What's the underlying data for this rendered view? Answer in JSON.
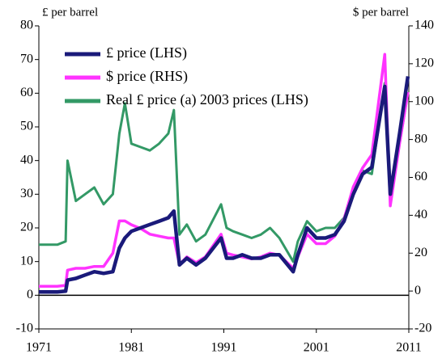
{
  "chart_data": {
    "type": "line",
    "y_label": "£ per barrel",
    "y2_label": "$ per barrel",
    "x": [
      1971,
      1972,
      1973,
      1973.9,
      1974.1,
      1975,
      1976,
      1977,
      1978,
      1979,
      1979.7,
      1980.3,
      1981,
      1982,
      1983,
      1984,
      1985,
      1985.6,
      1986.2,
      1987,
      1988,
      1989,
      1990.7,
      1991.3,
      1992,
      1993,
      1994,
      1995,
      1996,
      1997,
      1998.5,
      1999,
      2000,
      2001,
      2002,
      2003,
      2004,
      2005,
      2006,
      2007,
      2008.4,
      2009,
      2010,
      2010.9
    ],
    "series": [
      {
        "name": "Real £ price (a) 2003 prices (LHS)",
        "color": "#339966",
        "values": [
          15,
          15,
          15,
          16,
          40,
          28,
          30,
          32,
          27,
          30,
          48,
          57,
          45,
          44,
          43,
          45,
          48,
          55,
          18,
          21,
          16,
          18,
          27,
          20,
          19,
          18,
          17,
          18,
          20,
          17,
          10,
          16,
          22,
          19,
          20,
          20,
          23,
          31,
          37,
          36,
          63,
          28,
          45,
          60
        ]
      },
      {
        "name": "$ price (RHS)",
        "color": "#ff33ff",
        "axis": "y2",
        "values": [
          2.5,
          2.5,
          2.5,
          3,
          11,
          12,
          12,
          13,
          13,
          20,
          37,
          37,
          35,
          33,
          30,
          29,
          28,
          28,
          14,
          18,
          15,
          18,
          30,
          20,
          19,
          18,
          17,
          18,
          20,
          19,
          12,
          18,
          30,
          25,
          25,
          29,
          38,
          55,
          65,
          72,
          125,
          45,
          78,
          105
        ]
      },
      {
        "name": "£ price (LHS)",
        "color": "#1a1a7a",
        "values": [
          1,
          1,
          1,
          1.2,
          4.5,
          5,
          6,
          7,
          6.5,
          7,
          14,
          17,
          19,
          20,
          21,
          22,
          23,
          25,
          9,
          11,
          9,
          11,
          17,
          11,
          11,
          12,
          11,
          11,
          12,
          12,
          7,
          12,
          20,
          17,
          17,
          18,
          22,
          30,
          36,
          38,
          62,
          30,
          48,
          65
        ]
      }
    ],
    "legend_order": [
      2,
      1,
      0
    ],
    "xlim": [
      1971,
      2011
    ],
    "xticks": [
      1971,
      1981,
      1991,
      2001,
      2011
    ],
    "ylim": [
      -10,
      80
    ],
    "yticks": [
      -10,
      0,
      10,
      20,
      30,
      40,
      50,
      60,
      70,
      80
    ],
    "y2lim": [
      -20,
      140
    ],
    "y2ticks": [
      -20,
      0,
      20,
      40,
      60,
      80,
      100,
      120,
      140
    ],
    "zero_line": true
  }
}
